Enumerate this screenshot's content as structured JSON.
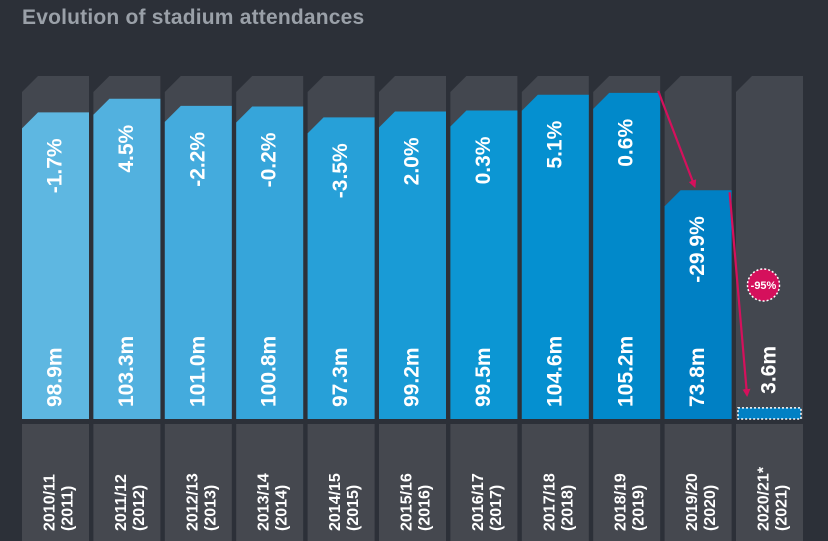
{
  "chart_data": {
    "type": "bar",
    "title": "Evolution of stadium attendances",
    "categories": [
      {
        "season": "2010/11",
        "year": "(2011)"
      },
      {
        "season": "2011/12",
        "year": "(2012)"
      },
      {
        "season": "2012/13",
        "year": "(2013)"
      },
      {
        "season": "2013/14",
        "year": "(2014)"
      },
      {
        "season": "2014/15",
        "year": "(2015)"
      },
      {
        "season": "2015/16",
        "year": "(2016)"
      },
      {
        "season": "2016/17",
        "year": "(2017)"
      },
      {
        "season": "2017/18",
        "year": "(2018)"
      },
      {
        "season": "2018/19",
        "year": "(2019)"
      },
      {
        "season": "2019/20",
        "year": "(2020)"
      },
      {
        "season": "2020/21*",
        "year": "(2021)"
      }
    ],
    "values": [
      98.9,
      103.3,
      101.0,
      100.8,
      97.3,
      99.2,
      99.5,
      104.6,
      105.2,
      73.8,
      3.6
    ],
    "value_labels": [
      "98.9m",
      "103.3m",
      "101.0m",
      "100.8m",
      "97.3m",
      "99.2m",
      "99.5m",
      "104.6m",
      "105.2m",
      "73.8m",
      "3.6m"
    ],
    "change_labels": [
      "-1.7%",
      "4.5%",
      "-2.2%",
      "-0.2%",
      "-3.5%",
      "2.0%",
      "0.3%",
      "5.1%",
      "0.6%",
      "-29.9%",
      ""
    ],
    "annotation": "-95%",
    "unit": "m",
    "colors": {
      "background": "#2c3038",
      "track": "#43474f",
      "track_top": "#4f535b",
      "label_box": "#45484f",
      "title": "#9aa0a8",
      "arrow": "#d5105c",
      "text": "#ffffff",
      "bars": [
        "#5eb7e1",
        "#52b1df",
        "#44abdd",
        "#36a5da",
        "#27a0d8",
        "#199bd6",
        "#0c96d3",
        "#0590d0",
        "#0189ca",
        "#0080c4",
        "#0080c4"
      ]
    }
  }
}
